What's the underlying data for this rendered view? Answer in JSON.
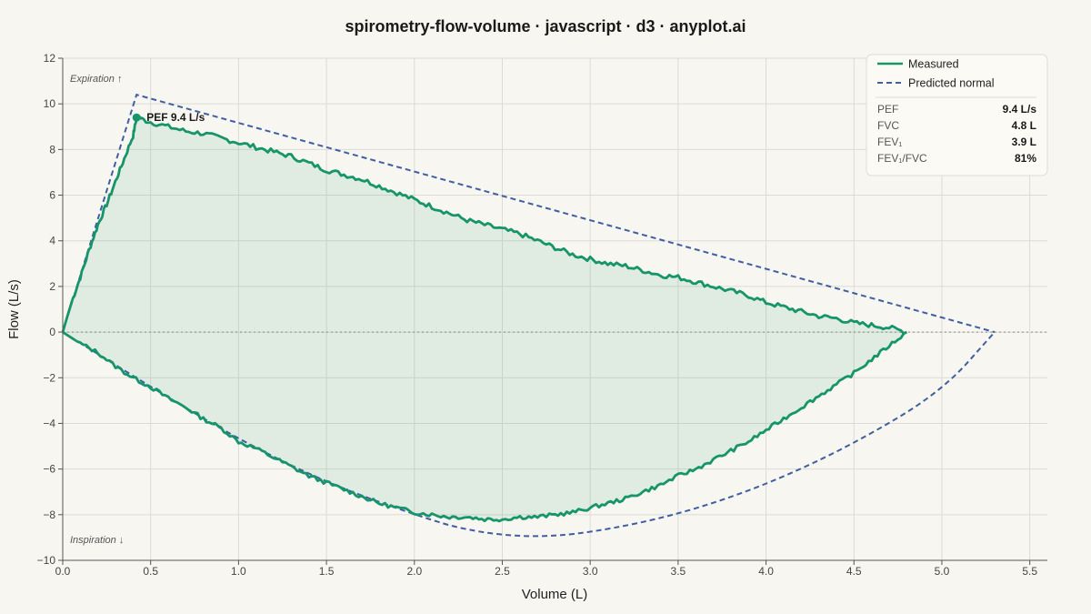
{
  "colors": {
    "background": "#f8f6f0",
    "measured": "#16956b",
    "measured_fill": "#16956b",
    "predicted": "#3f5fa0",
    "grid": "#dcdad4",
    "axis": "#555555"
  },
  "chart_data": {
    "type": "line",
    "title": "spirometry-flow-volume · javascript · d3 · anyplot.ai",
    "xlabel": "Volume (L)",
    "ylabel": "Flow (L/s)",
    "xlim": [
      0,
      5.6
    ],
    "ylim": [
      -10,
      12
    ],
    "grid": true,
    "legend_position": "top-right",
    "xticks": [
      "0.0",
      "0.5",
      "1.0",
      "1.5",
      "2.0",
      "2.5",
      "3.0",
      "3.5",
      "4.0",
      "4.5",
      "5.0",
      "5.5"
    ],
    "yticks": [
      "12",
      "10",
      "8",
      "6",
      "4",
      "2",
      "0",
      "−2",
      "−4",
      "−6",
      "−8",
      "−10"
    ],
    "annotations": {
      "expiration": "Expiration ↑",
      "inspiration": "Inspiration ↓",
      "pef_marker": "PEF 9.4 L/s"
    },
    "series": [
      {
        "name": "Measured",
        "style": "solid",
        "expiratory": [
          [
            0,
            0
          ],
          [
            0.05,
            1.3
          ],
          [
            0.1,
            2.4
          ],
          [
            0.15,
            3.6
          ],
          [
            0.2,
            4.7
          ],
          [
            0.25,
            5.6
          ],
          [
            0.3,
            6.6
          ],
          [
            0.35,
            7.6
          ],
          [
            0.4,
            8.6
          ],
          [
            0.42,
            9.4
          ],
          [
            0.5,
            9.2
          ],
          [
            0.6,
            9.0
          ],
          [
            0.7,
            8.8
          ],
          [
            0.8,
            8.7
          ],
          [
            0.9,
            8.5
          ],
          [
            1.0,
            8.3
          ],
          [
            1.1,
            8.1
          ],
          [
            1.2,
            7.9
          ],
          [
            1.3,
            7.7
          ],
          [
            1.4,
            7.4
          ],
          [
            1.5,
            7.1
          ],
          [
            1.6,
            6.9
          ],
          [
            1.7,
            6.7
          ],
          [
            1.8,
            6.4
          ],
          [
            1.9,
            6.1
          ],
          [
            2.0,
            5.8
          ],
          [
            2.1,
            5.5
          ],
          [
            2.2,
            5.2
          ],
          [
            2.3,
            4.9
          ],
          [
            2.4,
            4.7
          ],
          [
            2.5,
            4.5
          ],
          [
            2.6,
            4.3
          ],
          [
            2.7,
            4.0
          ],
          [
            2.8,
            3.7
          ],
          [
            2.9,
            3.4
          ],
          [
            3.0,
            3.2
          ],
          [
            3.1,
            3.0
          ],
          [
            3.2,
            2.9
          ],
          [
            3.3,
            2.7
          ],
          [
            3.4,
            2.5
          ],
          [
            3.5,
            2.4
          ],
          [
            3.6,
            2.2
          ],
          [
            3.7,
            2.0
          ],
          [
            3.8,
            1.8
          ],
          [
            3.9,
            1.6
          ],
          [
            4.0,
            1.3
          ],
          [
            4.1,
            1.1
          ],
          [
            4.2,
            0.9
          ],
          [
            4.3,
            0.7
          ],
          [
            4.4,
            0.6
          ],
          [
            4.5,
            0.4
          ],
          [
            4.6,
            0.3
          ],
          [
            4.7,
            0.2
          ],
          [
            4.8,
            0.0
          ]
        ],
        "inspiratory": [
          [
            0,
            0
          ],
          [
            0.1,
            -0.5
          ],
          [
            0.2,
            -0.9
          ],
          [
            0.3,
            -1.5
          ],
          [
            0.4,
            -2.0
          ],
          [
            0.5,
            -2.4
          ],
          [
            0.6,
            -2.9
          ],
          [
            0.7,
            -3.3
          ],
          [
            0.8,
            -3.8
          ],
          [
            0.9,
            -4.2
          ],
          [
            1.0,
            -4.8
          ],
          [
            1.1,
            -5.1
          ],
          [
            1.2,
            -5.5
          ],
          [
            1.3,
            -5.9
          ],
          [
            1.4,
            -6.3
          ],
          [
            1.5,
            -6.6
          ],
          [
            1.6,
            -6.9
          ],
          [
            1.7,
            -7.2
          ],
          [
            1.8,
            -7.5
          ],
          [
            1.9,
            -7.7
          ],
          [
            2.0,
            -7.9
          ],
          [
            2.1,
            -8.0
          ],
          [
            2.2,
            -8.1
          ],
          [
            2.3,
            -8.1
          ],
          [
            2.4,
            -8.2
          ],
          [
            2.5,
            -8.2
          ],
          [
            2.6,
            -8.1
          ],
          [
            2.7,
            -8.1
          ],
          [
            2.8,
            -8.0
          ],
          [
            2.9,
            -7.9
          ],
          [
            3.0,
            -7.7
          ],
          [
            3.1,
            -7.5
          ],
          [
            3.2,
            -7.3
          ],
          [
            3.3,
            -7.0
          ],
          [
            3.4,
            -6.7
          ],
          [
            3.5,
            -6.3
          ],
          [
            3.6,
            -6.0
          ],
          [
            3.7,
            -5.6
          ],
          [
            3.8,
            -5.2
          ],
          [
            3.9,
            -4.8
          ],
          [
            4.0,
            -4.3
          ],
          [
            4.1,
            -3.8
          ],
          [
            4.2,
            -3.3
          ],
          [
            4.3,
            -2.8
          ],
          [
            4.4,
            -2.3
          ],
          [
            4.5,
            -1.8
          ],
          [
            4.6,
            -1.2
          ],
          [
            4.7,
            -0.6
          ],
          [
            4.8,
            0.0
          ]
        ]
      },
      {
        "name": "Predicted normal",
        "style": "dashed",
        "expiratory": [
          [
            0,
            0
          ],
          [
            0.42,
            10.4
          ],
          [
            5.3,
            0
          ]
        ],
        "inspiratory": [
          [
            0,
            0
          ],
          [
            0.5,
            -2.4
          ],
          [
            1.0,
            -4.7
          ],
          [
            1.5,
            -6.6
          ],
          [
            2.0,
            -8.0
          ],
          [
            2.3,
            -8.7
          ],
          [
            2.65,
            -9.0
          ],
          [
            3.0,
            -8.8
          ],
          [
            3.5,
            -8.0
          ],
          [
            4.0,
            -6.7
          ],
          [
            4.5,
            -4.9
          ],
          [
            5.0,
            -2.6
          ],
          [
            5.3,
            0
          ]
        ]
      }
    ],
    "pef_point": {
      "x": 0.42,
      "y": 9.4
    },
    "metrics": [
      {
        "name": "PEF",
        "value": "9.4 L/s"
      },
      {
        "name": "FVC",
        "value": "4.8 L"
      },
      {
        "name": "FEV₁",
        "value": "3.9 L"
      },
      {
        "name": "FEV₁/FVC",
        "value": "81%"
      }
    ]
  }
}
